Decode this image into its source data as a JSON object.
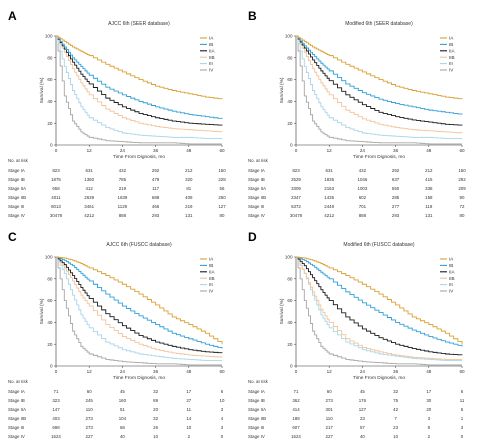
{
  "panels": [
    {
      "id": "A",
      "title": "AJCC 6th (SEER database)",
      "ylabel": "Survival (%)",
      "xlabel": "Time From Dignosis, mo",
      "xticks": [
        "0",
        "12",
        "24",
        "36",
        "48",
        "60"
      ],
      "yticks": [
        "0",
        "20",
        "40",
        "60",
        "80",
        "100"
      ],
      "risk_header": "No. at risk",
      "risk_rows": [
        {
          "label": "Stage IA",
          "values": [
            "823",
            "631",
            "432",
            "292",
            "212",
            "150"
          ]
        },
        {
          "label": "Stage IB",
          "values": [
            "1875",
            "1360",
            "785",
            "479",
            "320",
            "228"
          ]
        },
        {
          "label": "Stage IIA",
          "values": [
            "658",
            "412",
            "219",
            "117",
            "81",
            "56"
          ]
        },
        {
          "label": "Stage IIB",
          "values": [
            "4011",
            "2639",
            "1639",
            "688",
            "409",
            "250"
          ]
        },
        {
          "label": "Stage III",
          "values": [
            "8013",
            "3461",
            "1129",
            "466",
            "219",
            "127"
          ]
        },
        {
          "label": "Stage IV",
          "values": [
            "30478",
            "4212",
            "888",
            "293",
            "131",
            "80"
          ]
        }
      ]
    },
    {
      "id": "B",
      "title": "Modified 6th (SEER database)",
      "ylabel": "Survival (%)",
      "xlabel": "Time From Dignosis, mo",
      "xticks": [
        "0",
        "12",
        "24",
        "36",
        "48",
        "60"
      ],
      "yticks": [
        "0",
        "20",
        "40",
        "60",
        "80",
        "100"
      ],
      "risk_header": "No. at risk",
      "risk_rows": [
        {
          "label": "Stage IA",
          "values": [
            "823",
            "631",
            "432",
            "292",
            "212",
            "150"
          ]
        },
        {
          "label": "Stage IB",
          "values": [
            "2529",
            "1835",
            "1046",
            "637",
            "415",
            "292"
          ]
        },
        {
          "label": "Stage IIA",
          "values": [
            "3309",
            "2163",
            "1003",
            "550",
            "338",
            "209"
          ]
        },
        {
          "label": "Stage IIB",
          "values": [
            "2347",
            "1435",
            "602",
            "285",
            "158",
            "90"
          ]
        },
        {
          "label": "Stage III",
          "values": [
            "6372",
            "2449",
            "701",
            "277",
            "118",
            "72"
          ]
        },
        {
          "label": "Stage IV",
          "values": [
            "30478",
            "4212",
            "888",
            "293",
            "131",
            "80"
          ]
        }
      ]
    },
    {
      "id": "C",
      "title": "AJCC 6th (FUSCC database)",
      "ylabel": "Survival (%)",
      "xlabel": "Time From Dignosis, mo",
      "xticks": [
        "0",
        "12",
        "24",
        "36",
        "48",
        "60"
      ],
      "yticks": [
        "0",
        "20",
        "40",
        "60",
        "80",
        "100"
      ],
      "risk_header": "No. at risk",
      "risk_rows": [
        {
          "label": "Stage IA",
          "values": [
            "71",
            "60",
            "45",
            "32",
            "17",
            "6"
          ]
        },
        {
          "label": "Stage IB",
          "values": [
            "323",
            "245",
            "160",
            "89",
            "27",
            "10"
          ]
        },
        {
          "label": "Stage IIA",
          "values": [
            "147",
            "110",
            "51",
            "20",
            "11",
            "3"
          ]
        },
        {
          "label": "Stage IIB",
          "values": [
            "403",
            "273",
            "104",
            "32",
            "14",
            "4"
          ]
        },
        {
          "label": "Stage III",
          "values": [
            "698",
            "273",
            "68",
            "26",
            "10",
            "3"
          ]
        },
        {
          "label": "Stage IV",
          "values": [
            "1524",
            "227",
            "40",
            "10",
            "2",
            "0"
          ]
        }
      ]
    },
    {
      "id": "D",
      "title": "Modified 6th (FUSCC database)",
      "ylabel": "Survival (%)",
      "xlabel": "Time From Dignosis, mo",
      "xticks": [
        "0",
        "12",
        "24",
        "36",
        "48",
        "60"
      ],
      "yticks": [
        "0",
        "20",
        "40",
        "60",
        "80",
        "100"
      ],
      "risk_header": "No. at risk",
      "risk_rows": [
        {
          "label": "Stage IA",
          "values": [
            "71",
            "60",
            "45",
            "32",
            "17",
            "6"
          ]
        },
        {
          "label": "Stage IB",
          "values": [
            "362",
            "273",
            "176",
            "75",
            "30",
            "11"
          ]
        },
        {
          "label": "Stage IIA",
          "values": [
            "414",
            "301",
            "127",
            "42",
            "20",
            "5"
          ]
        },
        {
          "label": "Stage IIB",
          "values": [
            "188",
            "110",
            "23",
            "7",
            "3",
            "1"
          ]
        },
        {
          "label": "Stage III",
          "values": [
            "607",
            "217",
            "57",
            "23",
            "9",
            "3"
          ]
        },
        {
          "label": "Stage IV",
          "values": [
            "1524",
            "227",
            "40",
            "10",
            "2",
            "0"
          ]
        }
      ]
    }
  ],
  "legend_labels": [
    "IA",
    "IB",
    "IIA",
    "IIB",
    "III",
    "IV"
  ],
  "series_colors": {
    "IA": "#d9a033",
    "IB": "#2f9fd8",
    "IIA": "#1a1a1a",
    "IIB": "#f2c39a",
    "III": "#a9d5ea",
    "IV": "#a6a6a6"
  },
  "chart_data": [
    {
      "type": "line",
      "title": "AJCC 6th (SEER database)",
      "xlabel": "Time From Dignosis, mo",
      "ylabel": "Survival (%)",
      "xlim": [
        0,
        60
      ],
      "ylim": [
        0,
        100
      ],
      "legend": "top-right",
      "x": [
        0,
        3,
        6,
        9,
        12,
        18,
        24,
        30,
        36,
        42,
        48,
        54,
        60
      ],
      "series": [
        {
          "name": "IA",
          "values": [
            100,
            95,
            90,
            86,
            82,
            74,
            67,
            60,
            54,
            50,
            47,
            44,
            42
          ]
        },
        {
          "name": "IB",
          "values": [
            100,
            90,
            80,
            72,
            64,
            53,
            46,
            40,
            35,
            31,
            28,
            26,
            24
          ]
        },
        {
          "name": "IIA",
          "values": [
            100,
            88,
            76,
            65,
            56,
            43,
            35,
            29,
            25,
            22,
            20,
            19,
            18
          ]
        },
        {
          "name": "IIB",
          "values": [
            100,
            85,
            70,
            57,
            46,
            33,
            25,
            20,
            17,
            15,
            14,
            13,
            12
          ]
        },
        {
          "name": "III",
          "values": [
            100,
            72,
            50,
            35,
            25,
            16,
            11,
            9,
            8,
            7,
            7,
            6,
            6
          ]
        },
        {
          "name": "IV",
          "values": [
            100,
            45,
            22,
            12,
            7,
            4,
            3,
            2,
            2,
            2,
            1,
            1,
            1
          ]
        }
      ]
    },
    {
      "type": "line",
      "title": "Modified 6th (SEER database)",
      "xlabel": "Time From Dignosis, mo",
      "ylabel": "Survival (%)",
      "xlim": [
        0,
        60
      ],
      "ylim": [
        0,
        100
      ],
      "legend": "top-right",
      "x": [
        0,
        3,
        6,
        9,
        12,
        18,
        24,
        30,
        36,
        42,
        48,
        54,
        60
      ],
      "series": [
        {
          "name": "IA",
          "values": [
            100,
            95,
            90,
            86,
            82,
            74,
            67,
            60,
            54,
            50,
            47,
            44,
            42
          ]
        },
        {
          "name": "IB",
          "values": [
            100,
            91,
            83,
            75,
            68,
            56,
            48,
            42,
            38,
            35,
            32,
            30,
            28
          ]
        },
        {
          "name": "IIA",
          "values": [
            100,
            89,
            78,
            68,
            59,
            46,
            37,
            30,
            26,
            23,
            21,
            19,
            18
          ]
        },
        {
          "name": "IIB",
          "values": [
            100,
            85,
            70,
            57,
            46,
            32,
            24,
            19,
            16,
            14,
            13,
            12,
            11
          ]
        },
        {
          "name": "III",
          "values": [
            100,
            72,
            50,
            35,
            25,
            16,
            11,
            9,
            8,
            7,
            7,
            6,
            6
          ]
        },
        {
          "name": "IV",
          "values": [
            100,
            45,
            22,
            12,
            7,
            4,
            3,
            2,
            2,
            2,
            1,
            1,
            1
          ]
        }
      ]
    },
    {
      "type": "line",
      "title": "AJCC 6th (FUSCC database)",
      "xlabel": "Time From Dignosis, mo",
      "ylabel": "Survival (%)",
      "xlim": [
        0,
        60
      ],
      "ylim": [
        0,
        100
      ],
      "legend": "top-right",
      "x": [
        0,
        3,
        6,
        9,
        12,
        18,
        24,
        30,
        36,
        42,
        48,
        54,
        60
      ],
      "series": [
        {
          "name": "IA",
          "values": [
            100,
            99,
            97,
            94,
            90,
            83,
            75,
            66,
            56,
            45,
            38,
            30,
            20
          ]
        },
        {
          "name": "IB",
          "values": [
            100,
            97,
            92,
            85,
            78,
            66,
            55,
            46,
            38,
            30,
            25,
            20,
            16
          ]
        },
        {
          "name": "IIA",
          "values": [
            100,
            93,
            83,
            72,
            62,
            48,
            37,
            28,
            22,
            18,
            15,
            13,
            12
          ]
        },
        {
          "name": "IIB",
          "values": [
            100,
            90,
            78,
            65,
            55,
            38,
            27,
            20,
            15,
            12,
            10,
            9,
            8
          ]
        },
        {
          "name": "III",
          "values": [
            100,
            85,
            65,
            47,
            35,
            22,
            15,
            11,
            9,
            7,
            6,
            5,
            5
          ]
        },
        {
          "name": "IV",
          "values": [
            100,
            60,
            32,
            18,
            11,
            6,
            4,
            3,
            2,
            2,
            1,
            1,
            1
          ]
        }
      ]
    },
    {
      "type": "line",
      "title": "Modified 6th (FUSCC database)",
      "xlabel": "Time From Dignosis, mo",
      "ylabel": "Survival (%)",
      "xlim": [
        0,
        60
      ],
      "ylim": [
        0,
        100
      ],
      "legend": "top-right",
      "x": [
        0,
        3,
        6,
        9,
        12,
        18,
        24,
        30,
        36,
        42,
        48,
        54,
        60
      ],
      "series": [
        {
          "name": "IA",
          "values": [
            100,
            99,
            97,
            94,
            90,
            83,
            75,
            66,
            56,
            45,
            38,
            30,
            20
          ]
        },
        {
          "name": "IB",
          "values": [
            100,
            97,
            92,
            86,
            80,
            68,
            58,
            49,
            40,
            33,
            27,
            22,
            18
          ]
        },
        {
          "name": "IIA",
          "values": [
            100,
            92,
            81,
            70,
            60,
            45,
            34,
            26,
            20,
            16,
            13,
            11,
            10
          ]
        },
        {
          "name": "IIB",
          "values": [
            100,
            85,
            68,
            52,
            40,
            25,
            17,
            13,
            10,
            8,
            7,
            6,
            6
          ]
        },
        {
          "name": "III",
          "values": [
            100,
            85,
            65,
            47,
            35,
            22,
            15,
            11,
            9,
            7,
            6,
            5,
            5
          ]
        },
        {
          "name": "IV",
          "values": [
            100,
            60,
            32,
            18,
            11,
            6,
            4,
            3,
            2,
            2,
            1,
            1,
            1
          ]
        }
      ]
    }
  ]
}
